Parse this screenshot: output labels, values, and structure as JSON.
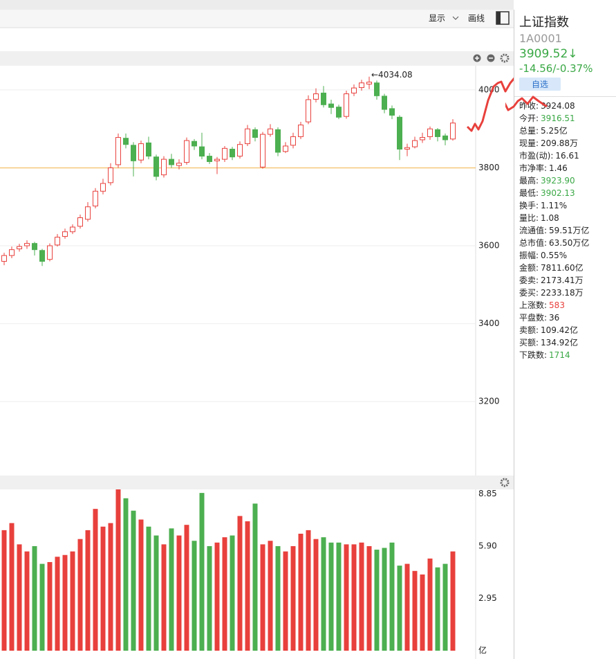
{
  "toolbar": {
    "display": "显示",
    "draw": "画线"
  },
  "chart_data": [
    {
      "type": "candlestick",
      "ylim": [
        3012,
        4062
      ],
      "yticks": [
        3200,
        3400,
        3600,
        3800,
        4000
      ],
      "grid": true,
      "ref_line": 3800,
      "annotation": "←4034.08",
      "annotation_index": 48,
      "open": [
        3560,
        3575,
        3592,
        3600,
        3606,
        3588,
        3565,
        3602,
        3624,
        3636,
        3650,
        3668,
        3702,
        3740,
        3762,
        3808,
        3876,
        3858,
        3820,
        3864,
        3828,
        3782,
        3822,
        3806,
        3814,
        3868,
        3854,
        3830,
        3818,
        3822,
        3848,
        3830,
        3862,
        3898,
        3802,
        3886,
        3898,
        3842,
        3858,
        3880,
        3918,
        3976,
        3992,
        3964,
        3956,
        3932,
        3992,
        4006,
        4015,
        4018,
        3984,
        3952,
        3930,
        3848,
        3854,
        3872,
        3880,
        3898,
        3882,
        3874
      ],
      "close": [
        3575,
        3590,
        3598,
        3606,
        3590,
        3560,
        3600,
        3622,
        3636,
        3648,
        3672,
        3700,
        3740,
        3760,
        3800,
        3878,
        3860,
        3818,
        3862,
        3830,
        3778,
        3822,
        3808,
        3812,
        3870,
        3856,
        3830,
        3816,
        3822,
        3850,
        3828,
        3860,
        3900,
        3878,
        3886,
        3900,
        3840,
        3856,
        3880,
        3910,
        3975,
        3990,
        3962,
        3955,
        3930,
        3990,
        4005,
        4018,
        4020,
        3985,
        3950,
        3935,
        3848,
        3852,
        3870,
        3878,
        3900,
        3880,
        3872,
        3915
      ],
      "high": [
        3582,
        3598,
        3605,
        3614,
        3610,
        3592,
        3606,
        3630,
        3644,
        3655,
        3680,
        3712,
        3748,
        3772,
        3812,
        3888,
        3888,
        3866,
        3870,
        3880,
        3834,
        3830,
        3836,
        3822,
        3878,
        3874,
        3890,
        3838,
        3828,
        3856,
        3854,
        3868,
        3910,
        3904,
        3892,
        3912,
        3904,
        3866,
        3890,
        3918,
        3986,
        4004,
        4010,
        3975,
        3962,
        3998,
        4014,
        4026,
        4034.08,
        4024,
        3990,
        3960,
        3935,
        3862,
        3880,
        3890,
        3906,
        3902,
        3888,
        3925
      ],
      "low": [
        3550,
        3568,
        3585,
        3592,
        3575,
        3548,
        3560,
        3598,
        3618,
        3630,
        3644,
        3662,
        3696,
        3732,
        3755,
        3800,
        3850,
        3778,
        3812,
        3822,
        3768,
        3775,
        3800,
        3796,
        3808,
        3846,
        3822,
        3810,
        3784,
        3815,
        3820,
        3824,
        3856,
        3868,
        3798,
        3880,
        3830,
        3838,
        3850,
        3874,
        3912,
        3968,
        3955,
        3938,
        3925,
        3926,
        3984,
        3998,
        4002,
        3975,
        3940,
        3925,
        3820,
        3830,
        3850,
        3864,
        3872,
        3868,
        3858,
        3870
      ]
    },
    {
      "type": "volume",
      "ylim": [
        0,
        9.1
      ],
      "yticks": [
        {
          "value": 0,
          "label": "亿"
        },
        2.95,
        {
          "value": 5.9,
          "label": "5.90"
        },
        8.85
      ],
      "values": [
        6.8,
        7.2,
        6.0,
        5.6,
        5.9,
        4.9,
        5.0,
        5.3,
        5.4,
        5.6,
        6.3,
        6.8,
        8.0,
        7.0,
        7.2,
        9.1,
        8.6,
        7.9,
        7.4,
        7.0,
        6.5,
        6.0,
        6.9,
        6.5,
        7.1,
        6.2,
        8.9,
        5.9,
        6.1,
        6.4,
        6.5,
        7.6,
        7.3,
        8.3,
        6.0,
        6.2,
        5.9,
        5.6,
        5.9,
        6.6,
        6.8,
        6.3,
        6.4,
        6.1,
        6.1,
        6.0,
        6.0,
        6.1,
        5.9,
        5.7,
        5.8,
        6.1,
        4.8,
        4.9,
        4.5,
        4.3,
        5.2,
        4.7,
        4.9,
        5.6
      ]
    }
  ],
  "quote": {
    "name": "上证指数",
    "code": "1A0001",
    "price": "3909.52↓",
    "change": "-14.56/-0.37%",
    "watch": "自选",
    "stats": [
      {
        "label": "昨收:",
        "value": "3924.08",
        "color": "#222"
      },
      {
        "label": "今开:",
        "value": "3916.51",
        "color": "#3aa845"
      },
      {
        "label": "总量:",
        "value": "5.25亿",
        "color": "#222"
      },
      {
        "label": "现量:",
        "value": "209.88万",
        "color": "#222"
      },
      {
        "label": "市盈(动):",
        "value": "16.61",
        "color": "#222"
      },
      {
        "label": "市净率:",
        "value": "1.46",
        "color": "#222"
      },
      {
        "label": "最高:",
        "value": "3923.90",
        "color": "#3aa845"
      },
      {
        "label": "最低:",
        "value": "3902.13",
        "color": "#3aa845"
      },
      {
        "label": "换手:",
        "value": "1.11%",
        "color": "#222"
      },
      {
        "label": "量比:",
        "value": "1.08",
        "color": "#222"
      },
      {
        "label": "流通值:",
        "value": "59.51万亿",
        "color": "#222"
      },
      {
        "label": "总市值:",
        "value": "63.50万亿",
        "color": "#222"
      },
      {
        "label": "振幅:",
        "value": "0.55%",
        "color": "#222"
      },
      {
        "label": "金额:",
        "value": "7811.60亿",
        "color": "#222"
      },
      {
        "label": "委卖:",
        "value": "2173.41万",
        "color": "#222"
      },
      {
        "label": "委买:",
        "value": "2233.18万",
        "color": "#222"
      },
      {
        "label": "上涨数:",
        "value": "583",
        "color": "#e8403c"
      },
      {
        "label": "平盘数:",
        "value": "36",
        "color": "#222"
      },
      {
        "label": "卖额:",
        "value": "109.42亿",
        "color": "#222"
      },
      {
        "label": "买额:",
        "value": "134.92亿",
        "color": "#222"
      },
      {
        "label": "下跌数:",
        "value": "1714",
        "color": "#3aa845"
      }
    ]
  }
}
